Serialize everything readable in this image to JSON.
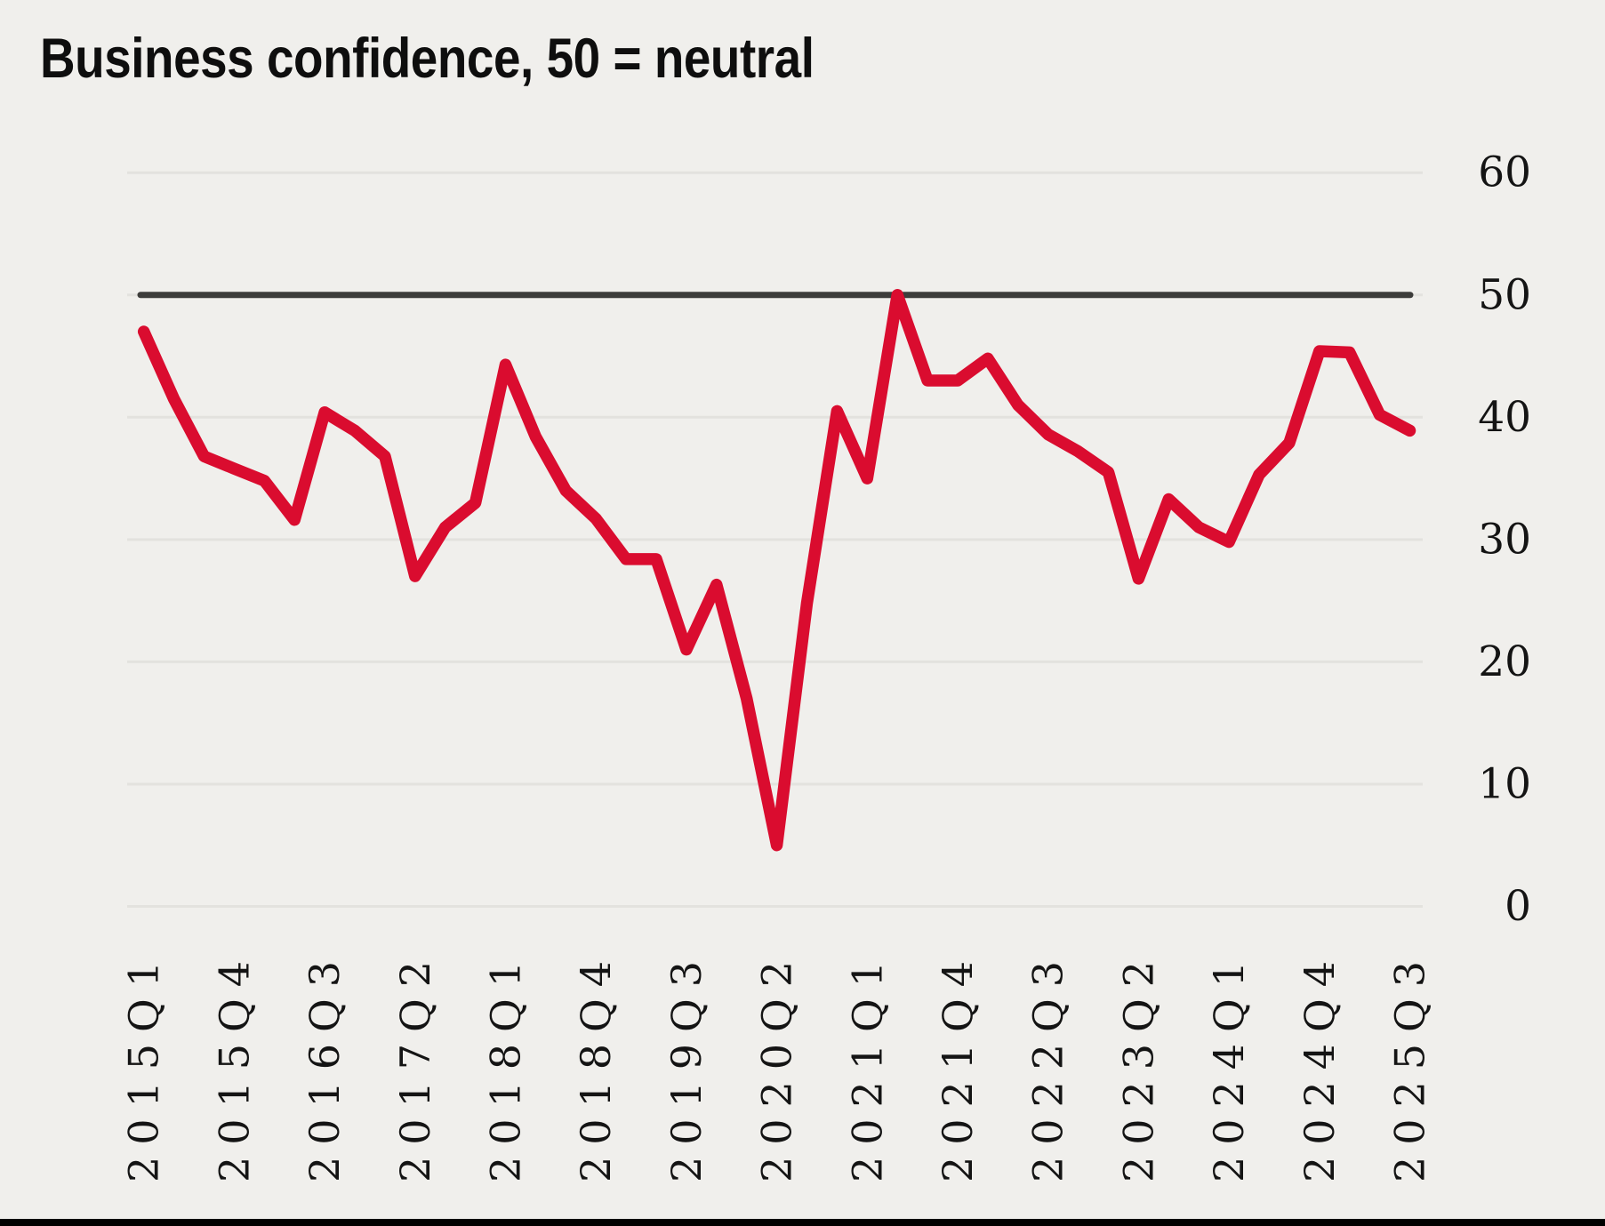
{
  "title": "Business confidence, 50 = neutral",
  "colors": {
    "background": "#f0efec",
    "series_red": "#da0c2f",
    "reference_line": "#3d3d3b",
    "gridline": "#e3e2de",
    "tick_text": "#141414",
    "title_text": "#0e0e0e",
    "bottom_bar": "#000000"
  },
  "chart_data": {
    "type": "line",
    "title": "Business confidence, 50 = neutral",
    "xlabel": "",
    "ylabel": "",
    "ylim": [
      0,
      60
    ],
    "yticks": [
      0,
      10,
      20,
      30,
      40,
      50,
      60
    ],
    "grid": "horizontal",
    "legend_position": "none",
    "y_axis_side": "right",
    "x_tick_labels": [
      "2015Q1",
      "2015Q4",
      "2016Q3",
      "2017Q2",
      "2018Q1",
      "2018Q4",
      "2019Q3",
      "2020Q2",
      "2021Q1",
      "2021Q4",
      "2022Q3",
      "2023Q2",
      "2024Q1",
      "2024Q4",
      "2025Q3"
    ],
    "categories": [
      "2015Q1",
      "2015Q2",
      "2015Q3",
      "2015Q4",
      "2016Q1",
      "2016Q2",
      "2016Q3",
      "2016Q4",
      "2017Q1",
      "2017Q2",
      "2017Q3",
      "2017Q4",
      "2018Q1",
      "2018Q2",
      "2018Q3",
      "2018Q4",
      "2019Q1",
      "2019Q2",
      "2019Q3",
      "2019Q4",
      "2020Q1",
      "2020Q2",
      "2020Q3",
      "2020Q4",
      "2021Q1",
      "2021Q2",
      "2021Q3",
      "2021Q4",
      "2022Q1",
      "2022Q2",
      "2022Q3",
      "2022Q4",
      "2023Q1",
      "2023Q2",
      "2023Q3",
      "2023Q4",
      "2024Q1",
      "2024Q2",
      "2024Q3",
      "2024Q4",
      "2025Q1",
      "2025Q2",
      "2025Q3"
    ],
    "series": [
      {
        "name": "Business confidence",
        "values": [
          47,
          41.5,
          36.8,
          35.8,
          34.8,
          31.6,
          40.4,
          38.9,
          36.8,
          27,
          31,
          33,
          44.3,
          38.4,
          34,
          31.7,
          28.4,
          28.4,
          21,
          26.3,
          17,
          5,
          24.8,
          40.5,
          35,
          50,
          43,
          43,
          44.8,
          41,
          38.6,
          37.2,
          35.5,
          26.8,
          33.3,
          31,
          29.8,
          35.3,
          37.9,
          45.4,
          45.3,
          40.2,
          38.9
        ]
      }
    ],
    "reference_line": {
      "value": 50,
      "meaning": "neutral"
    }
  }
}
